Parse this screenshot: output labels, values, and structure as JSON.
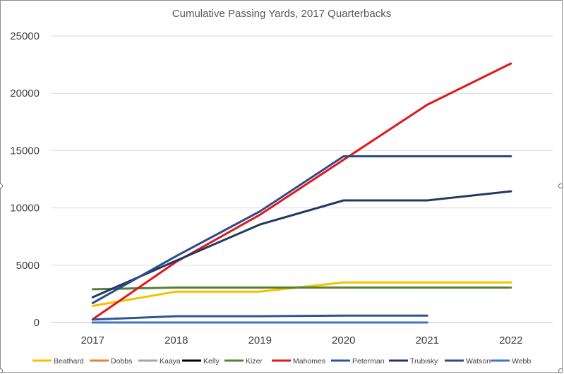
{
  "chart_data": {
    "type": "line",
    "title": "Cumulative Passing Yards, 2017 Quarterbacks",
    "xlabel": "",
    "ylabel": "",
    "x": [
      "2017",
      "2018",
      "2019",
      "2020",
      "2021",
      "2022"
    ],
    "ylim": [
      0,
      25000
    ],
    "yticks": [
      "0",
      "5000",
      "10000",
      "15000",
      "20000",
      "25000"
    ],
    "grid": true,
    "legend_position": "bottom",
    "series": [
      {
        "name": "Beathard",
        "color": "#F5C000",
        "values": [
          1450,
          2700,
          2700,
          3500,
          3500,
          3500
        ]
      },
      {
        "name": "Dobbs",
        "color": "#E88235",
        "values": [
          0,
          0,
          0,
          0,
          null,
          null
        ]
      },
      {
        "name": "Kaaya",
        "color": "#A5A5A5",
        "values": [
          0,
          0,
          null,
          null,
          null,
          null
        ]
      },
      {
        "name": "Kelly",
        "color": "#000000",
        "values": [
          0,
          0,
          null,
          null,
          null,
          null
        ]
      },
      {
        "name": "Kizer",
        "color": "#548235",
        "values": [
          2900,
          3050,
          3050,
          3050,
          3050,
          3050
        ]
      },
      {
        "name": "Mahomes",
        "color": "#E01818",
        "values": [
          280,
          5300,
          9400,
          14200,
          19000,
          22600
        ]
      },
      {
        "name": "Peterman",
        "color": "#2F5597",
        "values": [
          250,
          550,
          550,
          600,
          600,
          null
        ]
      },
      {
        "name": "Trubisky",
        "color": "#203864",
        "values": [
          2200,
          5400,
          8550,
          10650,
          10650,
          11450
        ]
      },
      {
        "name": "Watson",
        "color": "#2E4A8C",
        "values": [
          1700,
          5800,
          9700,
          14500,
          14500,
          14500
        ]
      },
      {
        "name": "Webb",
        "color": "#4472C4",
        "values": [
          0,
          0,
          0,
          0,
          0,
          null
        ]
      }
    ]
  }
}
